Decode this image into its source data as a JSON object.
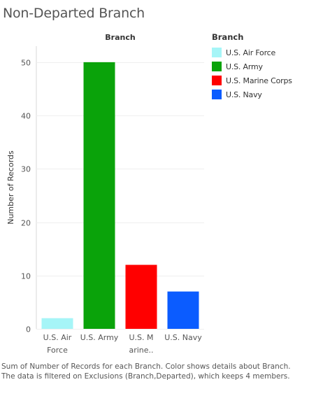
{
  "title": "Non-Departed Branch",
  "column_header": "Branch",
  "legend": {
    "title": "Branch",
    "items": [
      {
        "label": "U.S. Air Force",
        "color": "#a6f5f7"
      },
      {
        "label": "U.S. Army",
        "color": "#0aa30a"
      },
      {
        "label": "U.S. Marine Corps",
        "color": "#ff0000"
      },
      {
        "label": "U.S. Navy",
        "color": "#0b5cff"
      }
    ]
  },
  "caption": "Sum of Number of Records for each Branch.  Color shows details about Branch. The data is filtered on Exclusions (Branch,Departed), which keeps 4 members.",
  "chart_data": {
    "type": "bar",
    "xlabel": "Branch",
    "ylabel": "Number of Records",
    "ylim": [
      0,
      53
    ],
    "yticks": [
      0,
      10,
      20,
      30,
      40,
      50
    ],
    "grid": true,
    "legend_position": "right",
    "categories": [
      "U.S. Air Force",
      "U.S. Army",
      "U.S. Marine Corps",
      "U.S. Navy"
    ],
    "tick_labels": [
      [
        "U.S. Air",
        "Force"
      ],
      [
        "U.S. Army"
      ],
      [
        "U.S. M",
        "arine.."
      ],
      [
        "U.S. Navy"
      ]
    ],
    "values": [
      2,
      50,
      12,
      7
    ],
    "colors": [
      "#a6f5f7",
      "#0aa30a",
      "#ff0000",
      "#0b5cff"
    ]
  }
}
